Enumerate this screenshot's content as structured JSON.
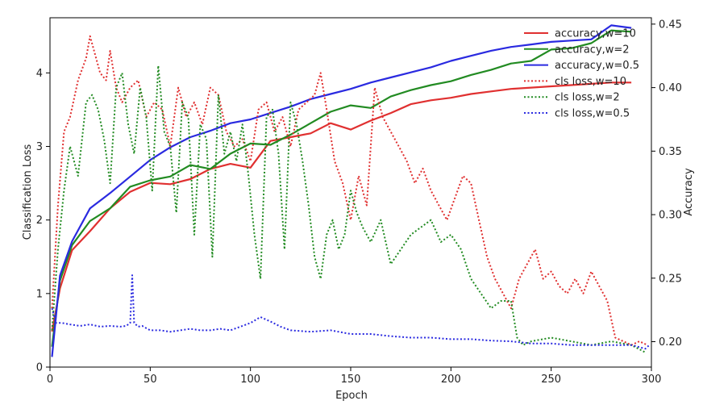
{
  "chart_data": {
    "type": "line",
    "x_label": "Epoch",
    "y_left_label": "Classification Loss",
    "y_right_label": "Accuracy",
    "x_range": [
      0,
      300
    ],
    "y_left_range": [
      0,
      4.75
    ],
    "y_right_range": [
      0.18,
      0.455
    ],
    "x_ticks": [
      0,
      50,
      100,
      150,
      200,
      250,
      300
    ],
    "y_left_ticks": [
      0,
      1,
      2,
      3,
      4
    ],
    "y_right_ticks": [
      0.2,
      0.25,
      0.3,
      0.35,
      0.4,
      0.45
    ],
    "y_right_tick_labels": [
      "0.20",
      "0.25",
      "0.30",
      "0.35",
      "0.40",
      "0.45"
    ],
    "grid": false,
    "legend_position": "top-right",
    "colors": {
      "w10": "#e03030",
      "w2": "#228b22",
      "w05": "#2a2ae0"
    },
    "series": [
      {
        "name": "accuracy,w=10",
        "axis": "right",
        "style": "solid",
        "color": "#e03030",
        "x": [
          1,
          5,
          11,
          20,
          30,
          40,
          50,
          60,
          70,
          80,
          90,
          100,
          110,
          120,
          130,
          140,
          150,
          160,
          170,
          180,
          190,
          200,
          210,
          220,
          230,
          240,
          250,
          260,
          270,
          280,
          290
        ],
        "y": [
          0.208,
          0.242,
          0.272,
          0.287,
          0.305,
          0.318,
          0.325,
          0.324,
          0.328,
          0.336,
          0.34,
          0.337,
          0.358,
          0.361,
          0.364,
          0.372,
          0.367,
          0.374,
          0.38,
          0.387,
          0.39,
          0.392,
          0.395,
          0.397,
          0.399,
          0.4,
          0.401,
          0.402,
          0.403,
          0.404,
          0.404
        ]
      },
      {
        "name": "accuracy,w=2",
        "axis": "right",
        "style": "solid",
        "color": "#228b22",
        "x": [
          1,
          5,
          11,
          20,
          30,
          40,
          50,
          60,
          70,
          80,
          90,
          100,
          110,
          120,
          130,
          140,
          150,
          160,
          170,
          180,
          190,
          200,
          210,
          220,
          230,
          240,
          250,
          260,
          270,
          280,
          290
        ],
        "y": [
          0.196,
          0.248,
          0.276,
          0.295,
          0.305,
          0.322,
          0.327,
          0.33,
          0.339,
          0.336,
          0.348,
          0.356,
          0.355,
          0.363,
          0.372,
          0.381,
          0.386,
          0.384,
          0.393,
          0.398,
          0.402,
          0.405,
          0.41,
          0.414,
          0.419,
          0.421,
          0.43,
          0.431,
          0.435,
          0.445,
          0.444
        ]
      },
      {
        "name": "accuracy,w=0.5",
        "axis": "right",
        "style": "solid",
        "color": "#2a2ae0",
        "x": [
          1,
          5,
          11,
          20,
          30,
          40,
          50,
          60,
          70,
          80,
          90,
          100,
          110,
          120,
          130,
          140,
          150,
          160,
          170,
          180,
          190,
          200,
          210,
          220,
          230,
          240,
          250,
          260,
          270,
          280,
          290
        ],
        "y": [
          0.188,
          0.252,
          0.279,
          0.305,
          0.317,
          0.33,
          0.343,
          0.353,
          0.361,
          0.366,
          0.372,
          0.375,
          0.38,
          0.385,
          0.391,
          0.395,
          0.399,
          0.404,
          0.408,
          0.412,
          0.416,
          0.421,
          0.425,
          0.429,
          0.432,
          0.434,
          0.436,
          0.437,
          0.438,
          0.449,
          0.447
        ]
      },
      {
        "name": "cls loss,w=10",
        "axis": "left",
        "style": "dotted",
        "color": "#e03030",
        "x": [
          1,
          4,
          7,
          10,
          14,
          18,
          20,
          22,
          25,
          28,
          30,
          33,
          36,
          40,
          44,
          48,
          52,
          56,
          60,
          64,
          68,
          72,
          76,
          80,
          84,
          88,
          92,
          96,
          100,
          104,
          108,
          112,
          116,
          120,
          124,
          128,
          132,
          135,
          138,
          142,
          146,
          150,
          154,
          158,
          162,
          166,
          170,
          174,
          178,
          182,
          186,
          190,
          194,
          198,
          202,
          206,
          210,
          214,
          218,
          222,
          226,
          230,
          234,
          238,
          242,
          246,
          250,
          254,
          258,
          262,
          266,
          270,
          274,
          278,
          282,
          286,
          290,
          294,
          298
        ],
        "y": [
          0.8,
          2.2,
          3.2,
          3.4,
          3.9,
          4.2,
          4.5,
          4.3,
          4.0,
          3.9,
          4.3,
          3.8,
          3.6,
          3.8,
          3.9,
          3.4,
          3.6,
          3.5,
          3.0,
          3.8,
          3.4,
          3.6,
          3.3,
          3.8,
          3.7,
          3.2,
          3.0,
          3.1,
          2.8,
          3.5,
          3.6,
          3.2,
          3.4,
          3.0,
          3.5,
          3.6,
          3.7,
          4.0,
          3.5,
          2.8,
          2.5,
          2.0,
          2.6,
          2.2,
          3.8,
          3.4,
          3.2,
          3.0,
          2.8,
          2.5,
          2.7,
          2.4,
          2.2,
          2.0,
          2.3,
          2.6,
          2.5,
          2.0,
          1.5,
          1.2,
          1.0,
          0.8,
          1.2,
          1.4,
          1.6,
          1.2,
          1.3,
          1.1,
          1.0,
          1.2,
          1.0,
          1.3,
          1.1,
          0.9,
          0.4,
          0.35,
          0.3,
          0.35,
          0.3
        ]
      },
      {
        "name": "cls loss,w=2",
        "axis": "left",
        "style": "dotted",
        "color": "#228b22",
        "x": [
          1,
          4,
          7,
          10,
          14,
          18,
          21,
          24,
          27,
          30,
          33,
          36,
          39,
          42,
          45,
          48,
          51,
          54,
          57,
          60,
          63,
          66,
          69,
          72,
          75,
          78,
          81,
          84,
          87,
          90,
          93,
          96,
          99,
          102,
          105,
          108,
          111,
          114,
          117,
          120,
          123,
          126,
          129,
          132,
          135,
          138,
          141,
          144,
          147,
          150,
          153,
          156,
          160,
          165,
          170,
          175,
          180,
          185,
          190,
          195,
          200,
          205,
          210,
          215,
          220,
          225,
          230,
          233,
          236,
          240,
          250,
          260,
          270,
          280,
          290,
          297
        ],
        "y": [
          0.5,
          1.6,
          2.4,
          3.0,
          2.6,
          3.6,
          3.7,
          3.5,
          3.1,
          2.5,
          3.8,
          4.0,
          3.3,
          2.9,
          3.8,
          3.4,
          2.4,
          4.1,
          3.2,
          3.0,
          2.1,
          3.6,
          3.4,
          1.8,
          3.3,
          3.1,
          1.5,
          3.7,
          2.9,
          3.2,
          2.8,
          3.3,
          2.6,
          1.8,
          1.2,
          3.4,
          3.5,
          2.9,
          1.6,
          3.6,
          3.3,
          2.8,
          2.2,
          1.5,
          1.2,
          1.8,
          2.0,
          1.6,
          1.8,
          2.4,
          2.1,
          1.9,
          1.7,
          2.0,
          1.4,
          1.6,
          1.8,
          1.9,
          2.0,
          1.7,
          1.8,
          1.6,
          1.2,
          1.0,
          0.8,
          0.9,
          0.9,
          0.4,
          0.3,
          0.35,
          0.4,
          0.35,
          0.3,
          0.35,
          0.3,
          0.2
        ]
      },
      {
        "name": "cls loss,w=0.5",
        "axis": "left",
        "style": "dotted",
        "color": "#2a2ae0",
        "x": [
          1,
          3,
          6,
          10,
          15,
          20,
          25,
          30,
          35,
          38,
          40,
          41,
          42,
          44,
          46,
          50,
          55,
          60,
          65,
          70,
          75,
          80,
          85,
          90,
          95,
          100,
          105,
          110,
          115,
          120,
          130,
          140,
          150,
          160,
          170,
          180,
          190,
          200,
          210,
          220,
          230,
          240,
          250,
          260,
          270,
          280,
          290,
          297,
          299
        ],
        "y": [
          0.8,
          0.6,
          0.6,
          0.58,
          0.56,
          0.58,
          0.55,
          0.56,
          0.55,
          0.56,
          0.6,
          1.25,
          0.6,
          0.55,
          0.56,
          0.5,
          0.5,
          0.48,
          0.5,
          0.52,
          0.5,
          0.5,
          0.52,
          0.5,
          0.55,
          0.6,
          0.68,
          0.62,
          0.55,
          0.5,
          0.48,
          0.5,
          0.45,
          0.45,
          0.42,
          0.4,
          0.4,
          0.38,
          0.38,
          0.36,
          0.35,
          0.32,
          0.32,
          0.3,
          0.3,
          0.3,
          0.3,
          0.25,
          0.3
        ]
      }
    ]
  }
}
